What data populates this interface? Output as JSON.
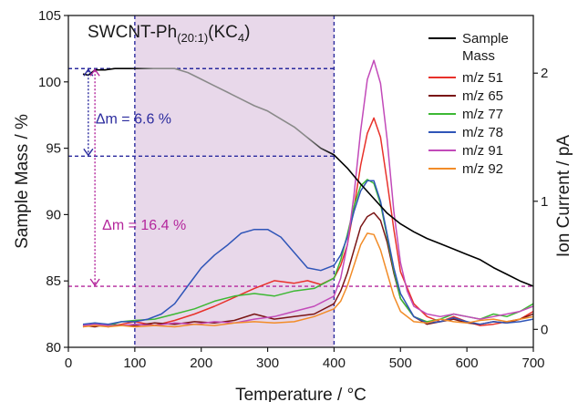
{
  "chart_data": {
    "type": "line",
    "title": "SWCNT-Ph(20:1)(KC4)",
    "title_parts": {
      "main": "SWCNT-Ph",
      "sub": "(20:1)",
      "mid": "(KC",
      "sub2": "4",
      "end": ")"
    },
    "xlabel": "Temperature / °C",
    "ylabel": "Sample Mass / %",
    "y2label": "Ion Current / pA",
    "xlim": [
      0,
      700
    ],
    "ylim": [
      80,
      105
    ],
    "y2lim": [
      -0.14,
      2.45
    ],
    "x_ticks": [
      0,
      100,
      200,
      300,
      400,
      500,
      600,
      700
    ],
    "y_ticks": [
      80,
      85,
      90,
      95,
      100,
      105
    ],
    "y2_ticks": [
      0,
      1,
      2
    ],
    "grid": false,
    "legend_position": "top-right",
    "shaded_region": {
      "x": [
        100,
        400
      ],
      "color": "#e8d8ea"
    },
    "reference_lines": [
      {
        "axis": "x",
        "value": 100,
        "color": "#2b2b9e"
      },
      {
        "axis": "x",
        "value": 400,
        "color": "#2b2b9e"
      },
      {
        "axis": "y",
        "value": 101,
        "color": "#2b2b9e"
      },
      {
        "axis": "y",
        "value": 94.4,
        "color": "#2b2b9e"
      },
      {
        "axis": "y",
        "value": 84.6,
        "color": "#b4279c"
      }
    ],
    "annotations": [
      {
        "label": "Δm = 6.6 %",
        "color": "#2b2b9e",
        "x": 30,
        "y_from": 101,
        "y_to": 94.4,
        "text_y": 97.2
      },
      {
        "label": "Δm = 16.4 %",
        "color": "#b4279c",
        "x": 40,
        "y_from": 101,
        "y_to": 84.6,
        "text_y": 89.2
      }
    ],
    "series": [
      {
        "name": "Sample Mass",
        "axis": "left",
        "color": "#000000",
        "gradient_color": "#8a8a8a",
        "gradient_range": [
          100,
          400
        ],
        "x": [
          22,
          30,
          40,
          55,
          70,
          85,
          100,
          130,
          160,
          180,
          200,
          220,
          240,
          260,
          280,
          300,
          320,
          340,
          360,
          380,
          400,
          420,
          440,
          460,
          480,
          500,
          520,
          540,
          560,
          580,
          600,
          620,
          640,
          660,
          680,
          700
        ],
        "y": [
          100.6,
          100.5,
          100.9,
          100.9,
          101.0,
          101.0,
          101.0,
          101.0,
          101.0,
          100.7,
          100.2,
          99.7,
          99.2,
          98.7,
          98.2,
          97.8,
          97.2,
          96.6,
          95.8,
          95.0,
          94.5,
          93.5,
          92.3,
          91.2,
          90.1,
          89.3,
          88.7,
          88.2,
          87.8,
          87.4,
          87.0,
          86.6,
          86.0,
          85.5,
          85.0,
          84.6
        ]
      },
      {
        "name": "m/z 51",
        "axis": "right",
        "color": "#e8312a",
        "x": [
          22,
          40,
          60,
          80,
          100,
          130,
          160,
          190,
          220,
          250,
          280,
          310,
          340,
          360,
          380,
          400,
          410,
          420,
          430,
          440,
          450,
          460,
          470,
          480,
          490,
          500,
          520,
          540,
          560,
          580,
          600,
          620,
          640,
          660,
          680,
          700
        ],
        "y": [
          0.02,
          0.04,
          0.02,
          0.04,
          0.06,
          0.03,
          0.07,
          0.12,
          0.18,
          0.25,
          0.32,
          0.38,
          0.36,
          0.38,
          0.35,
          0.4,
          0.5,
          0.66,
          0.95,
          1.28,
          1.53,
          1.65,
          1.5,
          1.15,
          0.78,
          0.45,
          0.2,
          0.1,
          0.06,
          0.1,
          0.06,
          0.03,
          0.04,
          0.06,
          0.08,
          0.14
        ]
      },
      {
        "name": "m/z 65",
        "axis": "right",
        "color": "#7a1515",
        "x": [
          22,
          40,
          60,
          80,
          100,
          130,
          160,
          190,
          220,
          250,
          280,
          310,
          340,
          370,
          400,
          410,
          420,
          430,
          440,
          450,
          460,
          470,
          480,
          490,
          500,
          520,
          540,
          560,
          580,
          600,
          620,
          640,
          660,
          680,
          700
        ],
        "y": [
          0.03,
          0.02,
          0.04,
          0.03,
          0.03,
          0.05,
          0.04,
          0.06,
          0.05,
          0.07,
          0.12,
          0.08,
          0.1,
          0.12,
          0.2,
          0.3,
          0.44,
          0.62,
          0.8,
          0.88,
          0.91,
          0.85,
          0.68,
          0.44,
          0.24,
          0.1,
          0.04,
          0.06,
          0.08,
          0.05,
          0.04,
          0.06,
          0.05,
          0.08,
          0.12
        ]
      },
      {
        "name": "m/z 77",
        "axis": "right",
        "color": "#3db834",
        "x": [
          22,
          40,
          60,
          80,
          100,
          130,
          160,
          190,
          220,
          250,
          280,
          310,
          340,
          370,
          400,
          410,
          420,
          430,
          440,
          450,
          460,
          470,
          480,
          490,
          500,
          520,
          540,
          560,
          580,
          600,
          620,
          640,
          660,
          680,
          700
        ],
        "y": [
          0.03,
          0.04,
          0.03,
          0.06,
          0.07,
          0.08,
          0.12,
          0.16,
          0.22,
          0.26,
          0.28,
          0.26,
          0.3,
          0.32,
          0.4,
          0.54,
          0.74,
          0.96,
          1.12,
          1.17,
          1.14,
          0.98,
          0.72,
          0.46,
          0.24,
          0.1,
          0.06,
          0.08,
          0.12,
          0.1,
          0.08,
          0.12,
          0.1,
          0.14,
          0.2
        ]
      },
      {
        "name": "m/z 78",
        "axis": "right",
        "color": "#2f55b8",
        "x": [
          22,
          40,
          60,
          80,
          100,
          120,
          140,
          160,
          180,
          200,
          220,
          240,
          260,
          280,
          300,
          320,
          340,
          360,
          380,
          400,
          410,
          420,
          430,
          440,
          450,
          460,
          470,
          480,
          490,
          500,
          520,
          540,
          560,
          580,
          600,
          620,
          640,
          660,
          680,
          700
        ],
        "y": [
          0.04,
          0.05,
          0.04,
          0.06,
          0.06,
          0.08,
          0.12,
          0.2,
          0.34,
          0.48,
          0.58,
          0.66,
          0.75,
          0.78,
          0.78,
          0.72,
          0.6,
          0.48,
          0.46,
          0.5,
          0.58,
          0.72,
          0.92,
          1.08,
          1.16,
          1.16,
          1.0,
          0.74,
          0.48,
          0.28,
          0.1,
          0.05,
          0.06,
          0.09,
          0.06,
          0.04,
          0.06,
          0.05,
          0.06,
          0.08
        ]
      },
      {
        "name": "m/z 91",
        "axis": "right",
        "color": "#c24ab9",
        "x": [
          22,
          40,
          60,
          80,
          100,
          130,
          160,
          190,
          220,
          250,
          280,
          310,
          340,
          370,
          400,
          410,
          420,
          430,
          440,
          450,
          460,
          470,
          480,
          490,
          500,
          510,
          520,
          540,
          560,
          580,
          600,
          620,
          640,
          660,
          680,
          700
        ],
        "y": [
          0.03,
          0.04,
          0.03,
          0.03,
          0.04,
          0.03,
          0.05,
          0.04,
          0.06,
          0.05,
          0.08,
          0.1,
          0.14,
          0.18,
          0.26,
          0.4,
          0.66,
          1.05,
          1.55,
          1.95,
          2.1,
          1.92,
          1.48,
          0.92,
          0.52,
          0.3,
          0.18,
          0.12,
          0.1,
          0.12,
          0.1,
          0.08,
          0.1,
          0.12,
          0.14,
          0.18
        ]
      },
      {
        "name": "m/z 92",
        "axis": "right",
        "color": "#f28c28",
        "x": [
          22,
          40,
          60,
          80,
          100,
          130,
          160,
          190,
          220,
          250,
          280,
          310,
          340,
          370,
          400,
          410,
          420,
          430,
          440,
          450,
          460,
          470,
          480,
          490,
          500,
          520,
          540,
          560,
          580,
          600,
          620,
          640,
          660,
          680,
          700
        ],
        "y": [
          0.02,
          0.03,
          0.02,
          0.03,
          0.02,
          0.03,
          0.02,
          0.04,
          0.03,
          0.05,
          0.06,
          0.05,
          0.06,
          0.1,
          0.16,
          0.22,
          0.34,
          0.5,
          0.66,
          0.75,
          0.74,
          0.62,
          0.44,
          0.26,
          0.14,
          0.06,
          0.05,
          0.08,
          0.06,
          0.05,
          0.07,
          0.08,
          0.06,
          0.08,
          0.1
        ]
      }
    ]
  }
}
